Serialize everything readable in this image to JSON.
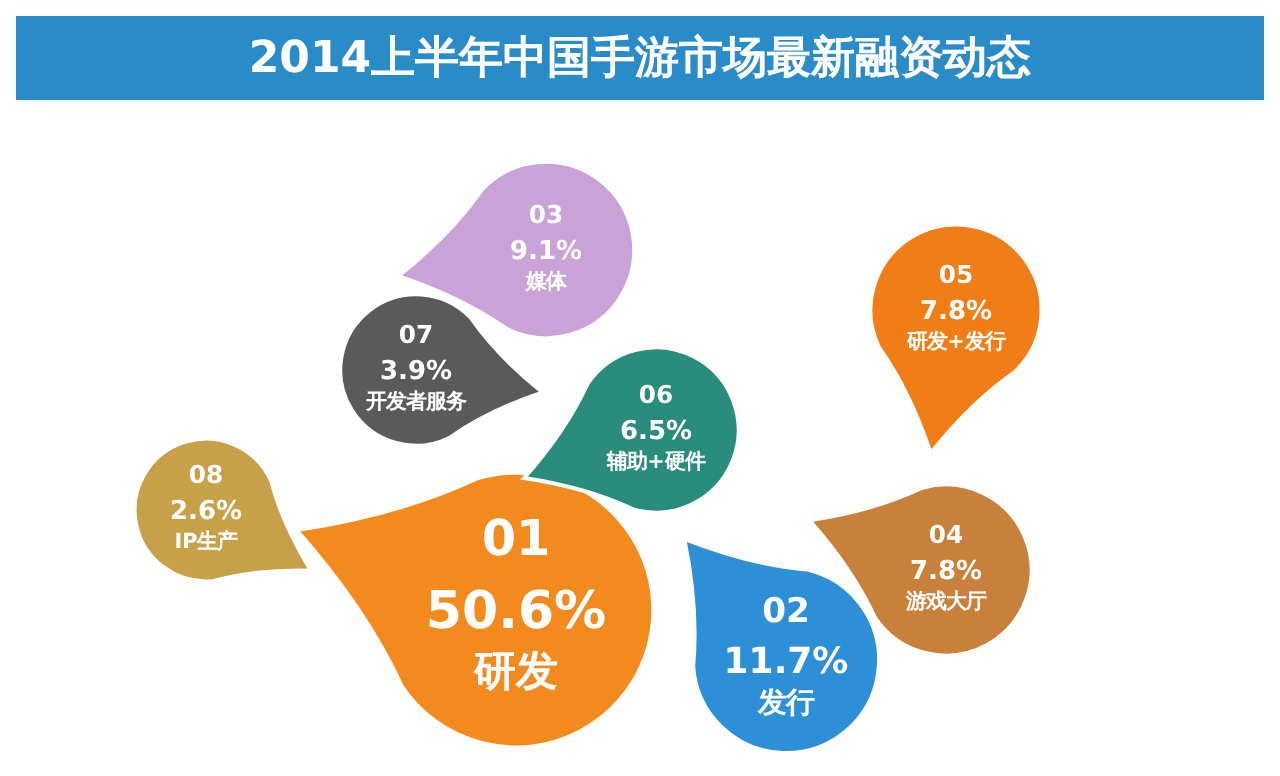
{
  "chart_data": {
    "type": "other",
    "title": "2014上半年中国手游市场最新融资动态",
    "categories": [
      "研发",
      "发行",
      "媒体",
      "研发+发行",
      "游戏大厅",
      "辅助+硬件",
      "开发者服务",
      "IP生产"
    ],
    "values": [
      50.6,
      11.7,
      9.1,
      7.8,
      7.8,
      6.5,
      3.9,
      2.6
    ],
    "value_labels": [
      "50.6%",
      "11.7%",
      "9.1%",
      "7.8%",
      "7.8%",
      "6.5%",
      "3.9%",
      "2.6%"
    ],
    "colors": [
      "#f28a1e",
      "#2d8fd6",
      "#c9a3d8",
      "#f07d16",
      "#c9803a",
      "#2a8c7c",
      "#5a5a5a",
      "#c9a04a"
    ],
    "annotations": [
      "01",
      "02",
      "03",
      "05",
      "04",
      "06",
      "07",
      "08"
    ]
  }
}
